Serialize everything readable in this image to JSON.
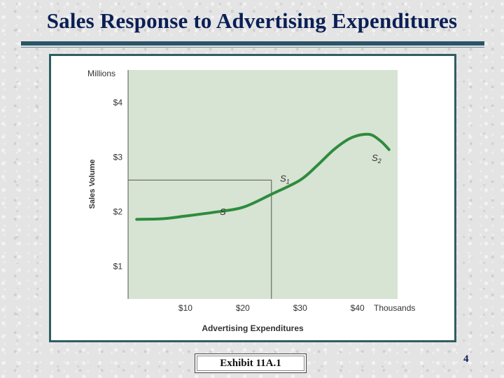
{
  "slide": {
    "title": "Sales Response to Advertising Expenditures",
    "exhibit_label": "Exhibit 11A.1",
    "page_number": "4"
  },
  "colors": {
    "title": "#0a1f55",
    "plot_bg": "#d7e3d3",
    "curve": "#2e8b3e",
    "frame": "#2d5f62"
  },
  "chart_data": {
    "type": "line",
    "title": "",
    "xlabel": "Advertising Expenditures",
    "ylabel": "Sales Volume",
    "x_unit_label": "Thousands",
    "y_unit_label": "Millions",
    "xlim": [
      0,
      47
    ],
    "ylim": [
      0.4,
      4.6
    ],
    "x_ticks": [
      {
        "value": 10,
        "label": "$10"
      },
      {
        "value": 20,
        "label": "$20"
      },
      {
        "value": 30,
        "label": "$30"
      },
      {
        "value": 40,
        "label": "$40"
      }
    ],
    "y_ticks": [
      {
        "value": 1,
        "label": "$1"
      },
      {
        "value": 2,
        "label": "$2"
      },
      {
        "value": 3,
        "label": "$3"
      },
      {
        "value": 4,
        "label": "$4"
      }
    ],
    "series": [
      {
        "x": [
          1.5,
          6,
          10,
          15,
          20,
          25,
          30,
          33,
          36,
          39,
          42,
          44,
          45.5
        ],
        "y": [
          1.86,
          1.87,
          1.92,
          1.99,
          2.08,
          2.32,
          2.58,
          2.85,
          3.15,
          3.36,
          3.42,
          3.3,
          3.14
        ]
      }
    ],
    "annotations": [
      {
        "label": "S",
        "x": 16,
        "y": 1.94
      },
      {
        "label": "S1",
        "x": 26.5,
        "y": 2.55
      },
      {
        "label": "S2",
        "x": 42.5,
        "y": 2.93
      }
    ],
    "reference_point": {
      "x": 25,
      "y": 2.58
    },
    "grid": false
  }
}
